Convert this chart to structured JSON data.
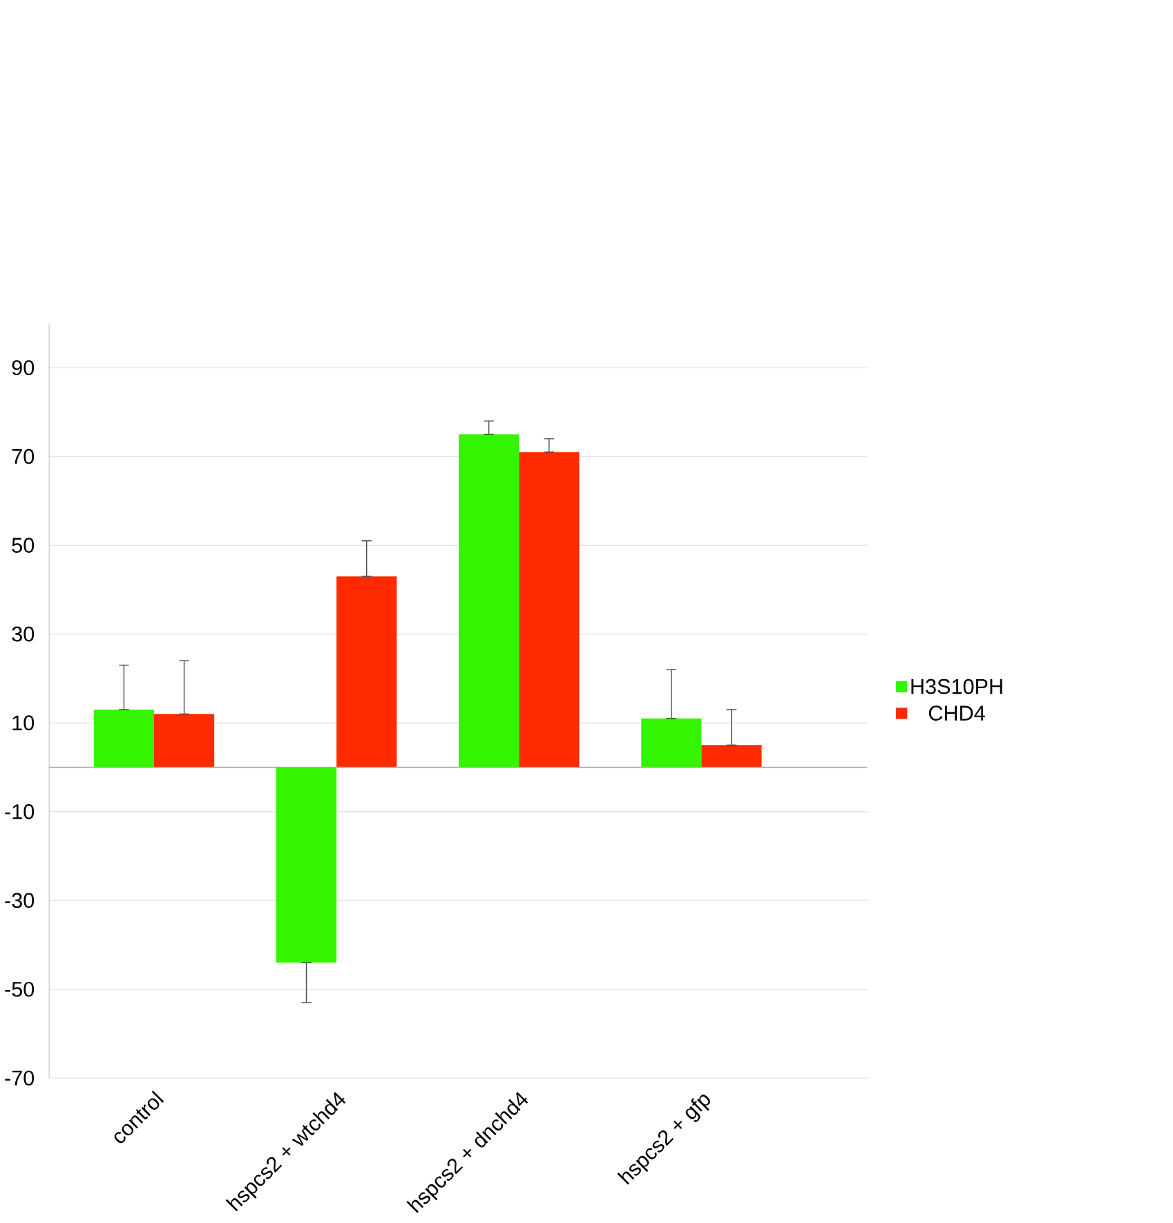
{
  "chart_data": {
    "type": "bar",
    "categories": [
      "control",
      "hspcs2 + wtchd4",
      "hspcs2 + dnchd4",
      "hspcs2 + gfp"
    ],
    "series": [
      {
        "name": "H3S10PH",
        "color": "#33f500",
        "values": [
          13,
          -44,
          75,
          11
        ],
        "errors": [
          [
            13,
            23
          ],
          [
            -53,
            -44
          ],
          [
            75,
            78
          ],
          [
            11,
            22
          ]
        ]
      },
      {
        "name": "CHD4",
        "color": "#ff2a00",
        "values": [
          12,
          43,
          71,
          5
        ],
        "errors": [
          [
            12,
            24
          ],
          [
            43,
            51
          ],
          [
            71,
            74
          ],
          [
            5,
            13
          ]
        ]
      }
    ],
    "ylim": [
      -70,
      100
    ],
    "yticks": [
      90,
      70,
      50,
      30,
      10,
      -10,
      -30,
      -50,
      -70
    ],
    "grid": "y",
    "legend": "right"
  }
}
